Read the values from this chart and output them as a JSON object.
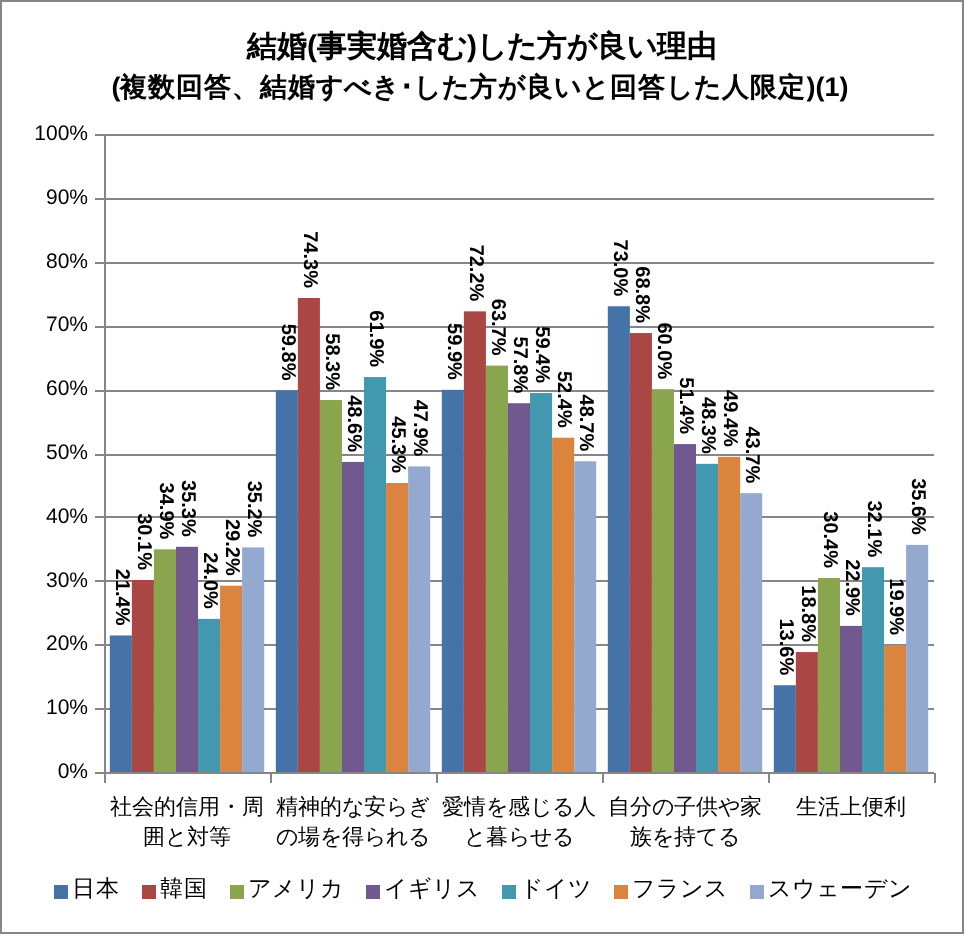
{
  "chart_data": {
    "type": "bar",
    "title": "結婚(事実婚含む)した方が良い理由",
    "subtitle": "(複数回答、結婚すべき･した方が良いと回答した人限定)(1)",
    "categories": [
      "社会的信用・周囲と対等",
      "精神的な安らぎの場を得られる",
      "愛情を感じる人と暮らせる",
      "自分の子供や家族を持てる",
      "生活上便利"
    ],
    "series": [
      {
        "name": "日本",
        "color": "#4572a7",
        "values": [
          21.4,
          59.8,
          59.9,
          73.0,
          13.6
        ],
        "value_labels": [
          "21.4%",
          "59.8%",
          "59.9%",
          "73.0%",
          "13.6%"
        ]
      },
      {
        "name": "韓国",
        "color": "#aa4643",
        "values": [
          30.1,
          74.3,
          72.2,
          68.8,
          18.8
        ],
        "value_labels": [
          "30.1%",
          "74.3%",
          "72.2%",
          "68.8%",
          "18.8%"
        ]
      },
      {
        "name": "アメリカ",
        "color": "#89a54e",
        "values": [
          34.9,
          58.3,
          63.7,
          60.0,
          30.4
        ],
        "value_labels": [
          "34.9%",
          "58.3%",
          "63.7%",
          "60.0%",
          "30.4%"
        ]
      },
      {
        "name": "イギリス",
        "color": "#71588f",
        "values": [
          35.3,
          48.6,
          57.8,
          51.4,
          22.9
        ],
        "value_labels": [
          "35.3%",
          "48.6%",
          "57.8%",
          "51.4%",
          "22.9%"
        ]
      },
      {
        "name": "ドイツ",
        "color": "#4198af",
        "values": [
          24.0,
          61.9,
          59.4,
          48.3,
          32.1
        ],
        "value_labels": [
          "24.0%",
          "61.9%",
          "59.4%",
          "48.3%",
          "32.1%"
        ]
      },
      {
        "name": "フランス",
        "color": "#db843d",
        "values": [
          29.2,
          45.3,
          52.4,
          49.4,
          19.9
        ],
        "value_labels": [
          "29.2%",
          "45.3%",
          "52.4%",
          "49.4%",
          "19.9%"
        ]
      },
      {
        "name": "スウェーデン",
        "color": "#93a9cf",
        "values": [
          35.2,
          47.9,
          48.7,
          43.7,
          35.6
        ],
        "value_labels": [
          "35.2%",
          "47.9%",
          "48.7%",
          "43.7%",
          "35.6%"
        ]
      }
    ],
    "ylim": [
      0,
      100
    ],
    "yticks": [
      {
        "value": 0,
        "label": "0%"
      },
      {
        "value": 10,
        "label": "10%"
      },
      {
        "value": 20,
        "label": "20%"
      },
      {
        "value": 30,
        "label": "30%"
      },
      {
        "value": 40,
        "label": "40%"
      },
      {
        "value": 50,
        "label": "50%"
      },
      {
        "value": 60,
        "label": "60%"
      },
      {
        "value": 70,
        "label": "70%"
      },
      {
        "value": 80,
        "label": "80%"
      },
      {
        "value": 90,
        "label": "90%"
      },
      {
        "value": 100,
        "label": "100%"
      }
    ],
    "grid": "y",
    "legend": "bottom"
  }
}
